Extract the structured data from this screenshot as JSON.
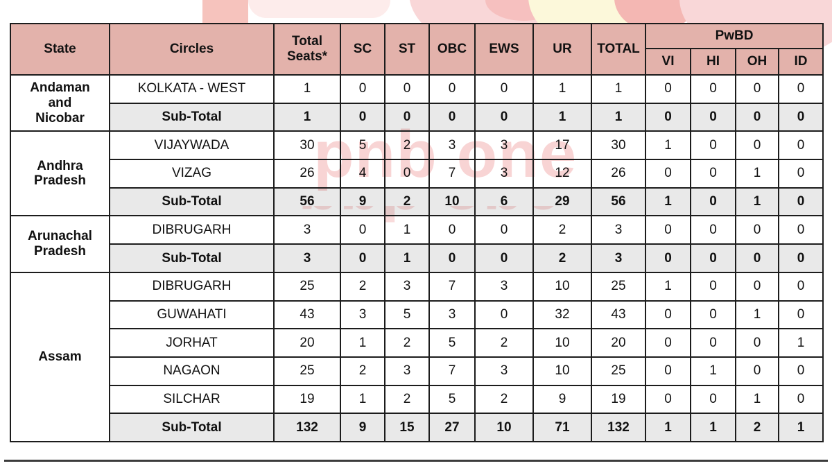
{
  "colors": {
    "header_bg": "#e3b2ab",
    "subtotal_bg": "#e8e8e8",
    "border": "#1c1c1c",
    "watermark_pink": "#f2abab",
    "logo_yellow": "#fcf8da"
  },
  "watermark": {
    "text": "pnb one"
  },
  "table": {
    "header": {
      "state": "State",
      "circles": "Circles",
      "total_seats": "Total Seats*",
      "sc": "SC",
      "st": "ST",
      "obc": "OBC",
      "ews": "EWS",
      "ur": "UR",
      "total": "TOTAL",
      "pwbd": "PwBD",
      "vi": "VI",
      "hi": "HI",
      "oh": "OH",
      "id": "ID"
    },
    "groups": [
      {
        "state": "Andaman\nand\nNicobar",
        "rows": [
          {
            "circle": "KOLKATA - WEST",
            "subtotal": false,
            "values": [
              1,
              0,
              0,
              0,
              0,
              1,
              1,
              0,
              0,
              0,
              0
            ]
          },
          {
            "circle": "Sub-Total",
            "subtotal": true,
            "values": [
              1,
              0,
              0,
              0,
              0,
              1,
              1,
              0,
              0,
              0,
              0
            ]
          }
        ]
      },
      {
        "state": "Andhra\nPradesh",
        "rows": [
          {
            "circle": "VIJAYWADA",
            "subtotal": false,
            "values": [
              30,
              5,
              2,
              3,
              3,
              17,
              30,
              1,
              0,
              0,
              0
            ]
          },
          {
            "circle": "VIZAG",
            "subtotal": false,
            "values": [
              26,
              4,
              0,
              7,
              3,
              12,
              26,
              0,
              0,
              1,
              0
            ]
          },
          {
            "circle": "Sub-Total",
            "subtotal": true,
            "values": [
              56,
              9,
              2,
              10,
              6,
              29,
              56,
              1,
              0,
              1,
              0
            ]
          }
        ]
      },
      {
        "state": "Arunachal\nPradesh",
        "rows": [
          {
            "circle": "DIBRUGARH",
            "subtotal": false,
            "values": [
              3,
              0,
              1,
              0,
              0,
              2,
              3,
              0,
              0,
              0,
              0
            ]
          },
          {
            "circle": "Sub-Total",
            "subtotal": true,
            "values": [
              3,
              0,
              1,
              0,
              0,
              2,
              3,
              0,
              0,
              0,
              0
            ]
          }
        ]
      },
      {
        "state": "Assam",
        "rows": [
          {
            "circle": "DIBRUGARH",
            "subtotal": false,
            "values": [
              25,
              2,
              3,
              7,
              3,
              10,
              25,
              1,
              0,
              0,
              0
            ]
          },
          {
            "circle": "GUWAHATI",
            "subtotal": false,
            "values": [
              43,
              3,
              5,
              3,
              0,
              32,
              43,
              0,
              0,
              1,
              0
            ]
          },
          {
            "circle": "JORHAT",
            "subtotal": false,
            "values": [
              20,
              1,
              2,
              5,
              2,
              10,
              20,
              0,
              0,
              0,
              1
            ]
          },
          {
            "circle": "NAGAON",
            "subtotal": false,
            "values": [
              25,
              2,
              3,
              7,
              3,
              10,
              25,
              0,
              1,
              0,
              0
            ]
          },
          {
            "circle": "SILCHAR",
            "subtotal": false,
            "values": [
              19,
              1,
              2,
              5,
              2,
              9,
              19,
              0,
              0,
              1,
              0
            ]
          },
          {
            "circle": "Sub-Total",
            "subtotal": true,
            "values": [
              132,
              9,
              15,
              27,
              10,
              71,
              132,
              1,
              1,
              2,
              1
            ]
          }
        ]
      }
    ]
  }
}
